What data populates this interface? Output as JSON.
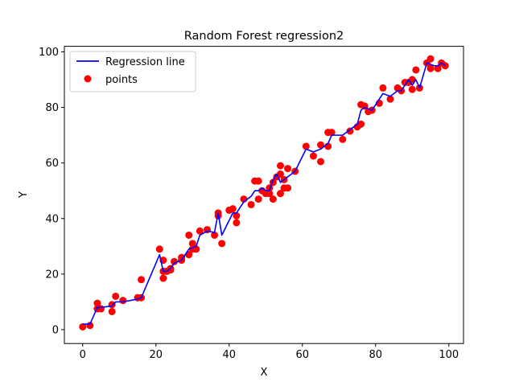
{
  "chart_data": {
    "type": "scatter",
    "title": "Random Forest regression2",
    "xlabel": "X",
    "ylabel": "Y",
    "xlim": [
      -5,
      104
    ],
    "ylim": [
      -5,
      102
    ],
    "xticks": [
      0,
      20,
      40,
      60,
      80,
      100
    ],
    "yticks": [
      0,
      20,
      40,
      60,
      80,
      100
    ],
    "xtick_labels": [
      "0",
      "20",
      "40",
      "60",
      "80",
      "100"
    ],
    "ytick_labels": [
      "0",
      "20",
      "40",
      "60",
      "80",
      "100"
    ],
    "grid": false,
    "legend_position": "top-left",
    "series": [
      {
        "name": "Regression line",
        "kind": "line",
        "color": "#0000ff",
        "points": [
          [
            0,
            2
          ],
          [
            2,
            2
          ],
          [
            4,
            8
          ],
          [
            5,
            8
          ],
          [
            8,
            8.5
          ],
          [
            9,
            10
          ],
          [
            11,
            10
          ],
          [
            15,
            11
          ],
          [
            16,
            11.5
          ],
          [
            21,
            27
          ],
          [
            22,
            21
          ],
          [
            23,
            21
          ],
          [
            24,
            22
          ],
          [
            25,
            24
          ],
          [
            27,
            25
          ],
          [
            29,
            29
          ],
          [
            31,
            30
          ],
          [
            32,
            34
          ],
          [
            34,
            35.5
          ],
          [
            36,
            35
          ],
          [
            37,
            42
          ],
          [
            38,
            34
          ],
          [
            41,
            42
          ],
          [
            42,
            42
          ],
          [
            44,
            46
          ],
          [
            46,
            48
          ],
          [
            47,
            50
          ],
          [
            48,
            50
          ],
          [
            49,
            51
          ],
          [
            50,
            50
          ],
          [
            51,
            50
          ],
          [
            52,
            54
          ],
          [
            53,
            56
          ],
          [
            54,
            53
          ],
          [
            56,
            55
          ],
          [
            58,
            57
          ],
          [
            61,
            65
          ],
          [
            63,
            64
          ],
          [
            65,
            65
          ],
          [
            67,
            67
          ],
          [
            68,
            70
          ],
          [
            71,
            70
          ],
          [
            73,
            72
          ],
          [
            75,
            74
          ],
          [
            76,
            79
          ],
          [
            77,
            80
          ],
          [
            79,
            79
          ],
          [
            82,
            85
          ],
          [
            84,
            84
          ],
          [
            86,
            86
          ],
          [
            87,
            86
          ],
          [
            88,
            88
          ],
          [
            89,
            90
          ],
          [
            90,
            88
          ],
          [
            91,
            90
          ],
          [
            92,
            87
          ],
          [
            94,
            96
          ],
          [
            96,
            95
          ],
          [
            97,
            95
          ],
          [
            98,
            96
          ],
          [
            99,
            95
          ]
        ]
      },
      {
        "name": "points",
        "kind": "scatter",
        "color": "#ff0000",
        "points": [
          [
            0,
            1
          ],
          [
            2,
            1.5
          ],
          [
            4,
            9.5
          ],
          [
            4,
            7.5
          ],
          [
            5,
            7.5
          ],
          [
            8,
            6.5
          ],
          [
            8,
            9
          ],
          [
            9,
            12
          ],
          [
            11,
            10.5
          ],
          [
            15,
            11.5
          ],
          [
            16,
            11.5
          ],
          [
            16,
            18
          ],
          [
            21,
            29
          ],
          [
            22,
            18.5
          ],
          [
            22,
            25
          ],
          [
            22,
            21
          ],
          [
            23,
            21
          ],
          [
            24,
            22
          ],
          [
            24,
            21.5
          ],
          [
            25,
            24.5
          ],
          [
            27,
            25
          ],
          [
            27,
            26
          ],
          [
            29,
            27
          ],
          [
            29,
            34
          ],
          [
            30,
            31
          ],
          [
            30,
            29
          ],
          [
            31,
            29
          ],
          [
            32,
            35.5
          ],
          [
            34,
            36
          ],
          [
            36,
            34
          ],
          [
            37,
            41
          ],
          [
            37,
            42
          ],
          [
            38,
            31
          ],
          [
            40,
            43
          ],
          [
            41,
            43.5
          ],
          [
            42,
            41
          ],
          [
            42,
            38.5
          ],
          [
            44,
            47
          ],
          [
            46,
            45
          ],
          [
            47,
            53.5
          ],
          [
            48,
            47
          ],
          [
            48,
            53.5
          ],
          [
            49,
            50
          ],
          [
            50,
            49
          ],
          [
            51,
            51
          ],
          [
            51,
            49
          ],
          [
            52,
            47
          ],
          [
            52,
            53
          ],
          [
            53,
            55
          ],
          [
            54,
            56
          ],
          [
            54,
            59
          ],
          [
            54,
            49
          ],
          [
            55,
            54
          ],
          [
            55,
            51
          ],
          [
            56,
            58
          ],
          [
            56,
            51
          ],
          [
            58,
            57
          ],
          [
            61,
            66
          ],
          [
            63,
            62.5
          ],
          [
            65,
            60.5
          ],
          [
            65,
            66.5
          ],
          [
            67,
            66
          ],
          [
            67,
            71
          ],
          [
            68,
            71
          ],
          [
            71,
            68.5
          ],
          [
            73,
            71.5
          ],
          [
            75,
            73
          ],
          [
            76,
            74
          ],
          [
            76,
            81
          ],
          [
            77,
            80.5
          ],
          [
            78,
            78.5
          ],
          [
            79,
            79
          ],
          [
            81,
            81.5
          ],
          [
            82,
            87
          ],
          [
            84,
            83
          ],
          [
            86,
            87
          ],
          [
            87,
            86
          ],
          [
            88,
            89
          ],
          [
            89,
            89
          ],
          [
            90,
            90
          ],
          [
            90,
            86.5
          ],
          [
            91,
            93.5
          ],
          [
            92,
            87
          ],
          [
            94,
            96
          ],
          [
            95,
            97.5
          ],
          [
            95,
            94
          ],
          [
            97,
            94
          ],
          [
            98,
            96
          ],
          [
            99,
            95
          ]
        ]
      }
    ]
  }
}
